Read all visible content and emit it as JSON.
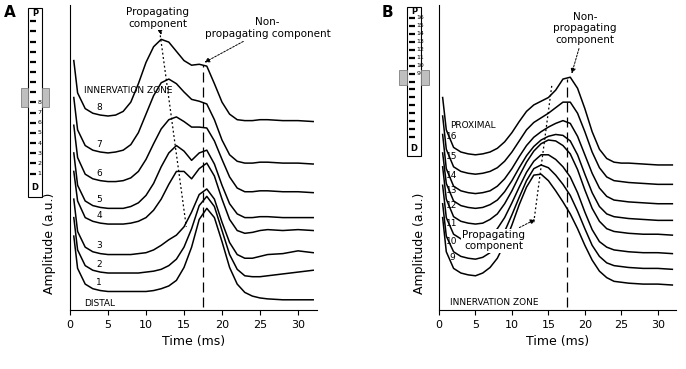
{
  "chart_data": [
    {
      "type": "line",
      "panel_label": "A",
      "x_label": "Time (ms)",
      "y_label": "Amplitude (a.u.)",
      "xlim": [
        0,
        32.5
      ],
      "xticks": [
        0,
        5,
        10,
        15,
        20,
        25,
        30
      ],
      "ylim": [
        0,
        33
      ],
      "tick_labels": "x",
      "x": [
        0.5,
        1,
        2,
        3,
        4,
        5,
        6,
        7,
        8,
        9,
        10,
        11,
        12,
        13,
        14,
        15,
        16,
        17,
        18,
        19,
        20,
        21,
        22,
        23,
        24,
        25,
        26,
        28,
        30,
        32
      ],
      "series": [
        {
          "name": "8",
          "color": "#000000",
          "values": [
            27,
            23.5,
            21.8,
            21.3,
            21.1,
            21.0,
            21.1,
            21.5,
            22.5,
            24.5,
            26.8,
            28.5,
            29.3,
            29.0,
            28.0,
            27.0,
            26.5,
            26.6,
            26.4,
            24.5,
            22.5,
            21.2,
            20.6,
            20.5,
            20.5,
            20.6,
            20.6,
            20.5,
            20.5,
            20.4
          ]
        },
        {
          "name": "7",
          "color": "#000000",
          "values": [
            23,
            19.5,
            17.8,
            17.3,
            17.1,
            17.0,
            17.1,
            17.3,
            17.9,
            19.2,
            21.2,
            23.2,
            24.6,
            25.0,
            24.5,
            23.6,
            22.8,
            22.6,
            22.3,
            20.6,
            18.4,
            16.8,
            16.1,
            15.9,
            15.9,
            16.0,
            16.0,
            15.9,
            15.9,
            15.8
          ]
        },
        {
          "name": "6",
          "color": "#000000",
          "values": [
            20,
            16.5,
            14.7,
            14.2,
            14.0,
            13.9,
            13.9,
            14.0,
            14.3,
            15.0,
            16.3,
            18.0,
            19.6,
            20.6,
            20.9,
            20.4,
            19.8,
            19.8,
            19.7,
            18.3,
            16.3,
            14.4,
            13.2,
            12.8,
            12.8,
            12.9,
            12.9,
            12.8,
            12.8,
            12.7
          ]
        },
        {
          "name": "5",
          "color": "#000000",
          "values": [
            17,
            13.5,
            11.8,
            11.3,
            11.1,
            11.0,
            11.0,
            11.0,
            11.2,
            11.6,
            12.4,
            13.7,
            15.5,
            17.0,
            17.8,
            17.2,
            16.2,
            17.0,
            17.3,
            15.8,
            13.5,
            11.5,
            10.4,
            10.0,
            10.0,
            10.1,
            10.1,
            10.0,
            10.0,
            10.0
          ]
        },
        {
          "name": "4",
          "color": "#000000",
          "values": [
            15,
            11.8,
            10.0,
            9.6,
            9.4,
            9.3,
            9.3,
            9.3,
            9.4,
            9.6,
            10.0,
            10.8,
            12.0,
            13.6,
            15.0,
            15.0,
            14.2,
            15.3,
            15.9,
            14.5,
            12.0,
            9.8,
            8.6,
            8.3,
            8.4,
            8.6,
            8.7,
            8.6,
            8.7,
            8.6
          ]
        },
        {
          "name": "3",
          "color": "#000000",
          "values": [
            12,
            8.5,
            6.8,
            6.3,
            6.1,
            6.0,
            6.0,
            6.0,
            6.0,
            6.1,
            6.2,
            6.5,
            7.0,
            7.6,
            8.1,
            9.0,
            10.6,
            12.5,
            13.1,
            12.0,
            9.5,
            7.3,
            6.0,
            5.6,
            5.6,
            5.8,
            6.0,
            6.1,
            6.4,
            6.2
          ]
        },
        {
          "name": "2",
          "color": "#000000",
          "values": [
            10,
            6.5,
            4.8,
            4.3,
            4.1,
            4.0,
            4.0,
            4.0,
            4.0,
            4.0,
            4.1,
            4.2,
            4.4,
            4.8,
            5.5,
            6.8,
            8.8,
            11.3,
            12.3,
            11.2,
            8.6,
            6.0,
            4.4,
            3.7,
            3.6,
            3.6,
            3.7,
            3.9,
            4.1,
            4.3
          ]
        },
        {
          "name": "1",
          "color": "#000000",
          "values": [
            8,
            4.5,
            2.8,
            2.3,
            2.1,
            2.0,
            2.0,
            2.0,
            2.0,
            2.0,
            2.0,
            2.1,
            2.3,
            2.6,
            3.2,
            4.6,
            6.8,
            9.8,
            11.0,
            10.0,
            7.4,
            4.6,
            2.8,
            1.9,
            1.5,
            1.3,
            1.2,
            1.1,
            1.1,
            1.1
          ]
        }
      ],
      "propagating_line": {
        "x": [
          11.8,
          15.3
        ],
        "y": [
          30.2,
          9.0
        ],
        "color": "#000000",
        "line_style": "dotted"
      },
      "non_propagating_line": {
        "x": [
          17.5,
          17.5
        ],
        "y": [
          0.3,
          26.5
        ],
        "color": "#000000",
        "line_style": "dashed"
      },
      "annotations": [
        {
          "text": "Propagating\ncomponent",
          "x": 11.5,
          "y": 31.6,
          "arrow_to": [
            12.0,
            29.8
          ]
        },
        {
          "text": "Non-\npropagating component",
          "x": 26.0,
          "y": 30.5,
          "arrow_to": [
            17.7,
            26.8
          ]
        },
        {
          "text": "INNERVATION ZONE",
          "x": 1.8,
          "y": 23.3
        },
        {
          "text": "DISTAL",
          "x": 1.8,
          "y": 0.2
        }
      ],
      "schematic": {
        "top": "P",
        "bottom": "D",
        "electrodes": 16,
        "numbered": [
          1,
          2,
          3,
          4,
          5,
          6,
          7,
          8
        ]
      }
    },
    {
      "type": "line",
      "panel_label": "B",
      "x_label": "Time (ms)",
      "y_label": "Amplitude (a.u.)",
      "xlim": [
        0,
        32.5
      ],
      "xticks": [
        0,
        5,
        10,
        15,
        20,
        25,
        30
      ],
      "ylim": [
        0,
        33
      ],
      "tick_labels": "x",
      "x": [
        0.5,
        1,
        2,
        3,
        4,
        5,
        6,
        7,
        8,
        9,
        10,
        11,
        12,
        13,
        14,
        15,
        16,
        17,
        18,
        19,
        20,
        21,
        22,
        23,
        24,
        25,
        26,
        28,
        30,
        32
      ],
      "series": [
        {
          "name": "16",
          "color": "#000000",
          "values": [
            23,
            19.5,
            17.6,
            17.1,
            16.9,
            16.8,
            16.9,
            17.1,
            17.5,
            18.2,
            19.2,
            20.4,
            21.5,
            22.2,
            22.6,
            23.0,
            23.8,
            25.0,
            25.2,
            24.0,
            21.8,
            19.3,
            17.4,
            16.4,
            16.0,
            15.9,
            15.9,
            15.8,
            15.7,
            15.7
          ]
        },
        {
          "name": "15",
          "color": "#000000",
          "values": [
            21,
            17.4,
            15.5,
            15.0,
            14.8,
            14.7,
            14.8,
            15.0,
            15.4,
            16.1,
            17.1,
            18.3,
            19.5,
            20.3,
            20.8,
            21.3,
            21.9,
            22.5,
            22.5,
            21.3,
            19.3,
            17.1,
            15.4,
            14.4,
            14.0,
            13.9,
            13.8,
            13.7,
            13.6,
            13.6
          ]
        },
        {
          "name": "14",
          "color": "#000000",
          "values": [
            19,
            15.3,
            13.4,
            12.9,
            12.7,
            12.6,
            12.7,
            12.9,
            13.4,
            14.2,
            15.3,
            16.6,
            17.8,
            18.7,
            19.3,
            19.8,
            20.2,
            20.5,
            20.2,
            18.8,
            16.8,
            14.8,
            13.2,
            12.3,
            11.9,
            11.8,
            11.7,
            11.6,
            11.5,
            11.5
          ]
        },
        {
          "name": "13",
          "color": "#000000",
          "values": [
            17,
            13.7,
            11.8,
            11.3,
            11.1,
            11.0,
            11.1,
            11.4,
            11.9,
            12.8,
            14.0,
            15.4,
            16.7,
            17.7,
            18.4,
            18.8,
            19.0,
            18.9,
            18.3,
            16.8,
            14.7,
            12.7,
            11.2,
            10.4,
            10.1,
            10.0,
            9.9,
            9.8,
            9.7,
            9.7
          ]
        },
        {
          "name": "12",
          "color": "#000000",
          "values": [
            15.5,
            12,
            10.1,
            9.6,
            9.4,
            9.3,
            9.4,
            9.8,
            10.4,
            11.5,
            12.9,
            14.5,
            16.0,
            17.2,
            18.0,
            18.4,
            18.3,
            17.8,
            16.9,
            15.2,
            13.0,
            11.0,
            9.6,
            8.8,
            8.5,
            8.4,
            8.3,
            8.2,
            8.2,
            8.1
          ]
        },
        {
          "name": "11",
          "color": "#000000",
          "values": [
            13.5,
            10,
            8.2,
            7.7,
            7.5,
            7.4,
            7.6,
            8.0,
            8.8,
            10.0,
            11.6,
            13.3,
            14.9,
            16.1,
            16.8,
            16.8,
            16.3,
            15.5,
            14.4,
            12.7,
            10.6,
            8.7,
            7.4,
            6.8,
            6.5,
            6.4,
            6.3,
            6.2,
            6.2,
            6.1
          ]
        },
        {
          "name": "10",
          "color": "#000000",
          "values": [
            11.5,
            8,
            6.3,
            5.8,
            5.6,
            5.5,
            5.7,
            6.2,
            7.1,
            8.5,
            10.3,
            12.2,
            14.0,
            15.3,
            15.7,
            15.4,
            14.6,
            13.6,
            12.4,
            10.7,
            8.8,
            7.0,
            5.8,
            5.1,
            4.8,
            4.7,
            4.6,
            4.5,
            4.5,
            4.4
          ]
        },
        {
          "name": "9",
          "color": "#000000",
          "values": [
            10,
            6.3,
            4.5,
            4.0,
            3.8,
            3.7,
            4.0,
            4.6,
            5.6,
            7.2,
            9.2,
            11.4,
            13.3,
            14.6,
            14.7,
            14.0,
            12.9,
            11.7,
            10.4,
            8.8,
            7.0,
            5.4,
            4.2,
            3.5,
            3.1,
            3.0,
            2.9,
            2.8,
            2.8,
            2.7
          ]
        }
      ],
      "propagating_line": {
        "x": [
          13.0,
          15.5
        ],
        "y": [
          9.5,
          24.5
        ],
        "color": "#000000",
        "line_style": "dotted"
      },
      "non_propagating_line": {
        "x": [
          17.5,
          17.5
        ],
        "y": [
          0.3,
          25.0
        ],
        "color": "#000000",
        "line_style": "dashed"
      },
      "annotations": [
        {
          "text": "Non-\npropagating\ncomponent",
          "x": 20.0,
          "y": 30.5,
          "arrow_to": [
            18.2,
            25.6
          ]
        },
        {
          "text": "Propagating\ncomponent",
          "x": 7.5,
          "y": 7.5,
          "arrow_to": [
            13.2,
            9.8
          ]
        },
        {
          "text": "PROXIMAL",
          "x": 1.5,
          "y": 19.5
        },
        {
          "text": "INNERVATION ZONE",
          "x": 1.5,
          "y": 0.3
        }
      ],
      "schematic": {
        "top": "P",
        "bottom": "D",
        "electrodes": 16,
        "numbered": [
          9,
          10,
          11,
          12,
          13,
          14,
          15,
          16
        ]
      }
    }
  ]
}
